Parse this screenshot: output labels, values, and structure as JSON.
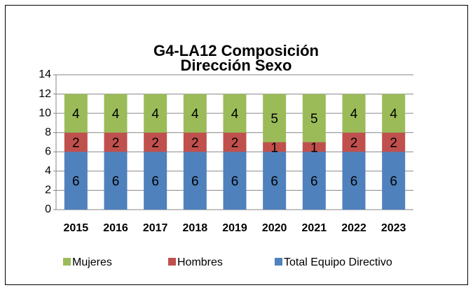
{
  "chart_data": {
    "type": "stacked_bar",
    "title": "G4-LA12 Composición Dirección Sexo",
    "categories": [
      "2015",
      "2016",
      "2017",
      "2018",
      "2019",
      "2020",
      "2021",
      "2022",
      "2023"
    ],
    "series": [
      {
        "name": "Total Equipo Directivo",
        "color": "#4f81bd",
        "values": [
          6,
          6,
          6,
          6,
          6,
          6,
          6,
          6,
          6
        ]
      },
      {
        "name": "Hombres",
        "color": "#c0504d",
        "values": [
          2,
          2,
          2,
          2,
          2,
          1,
          1,
          2,
          2
        ]
      },
      {
        "name": "Mujeres",
        "color": "#9bbb59",
        "values": [
          4,
          4,
          4,
          4,
          4,
          5,
          5,
          4,
          4
        ]
      }
    ],
    "ylim": [
      0,
      14
    ],
    "yticks": [
      0,
      2,
      4,
      6,
      8,
      10,
      12,
      14
    ],
    "grid": true,
    "legend": "bottom"
  }
}
